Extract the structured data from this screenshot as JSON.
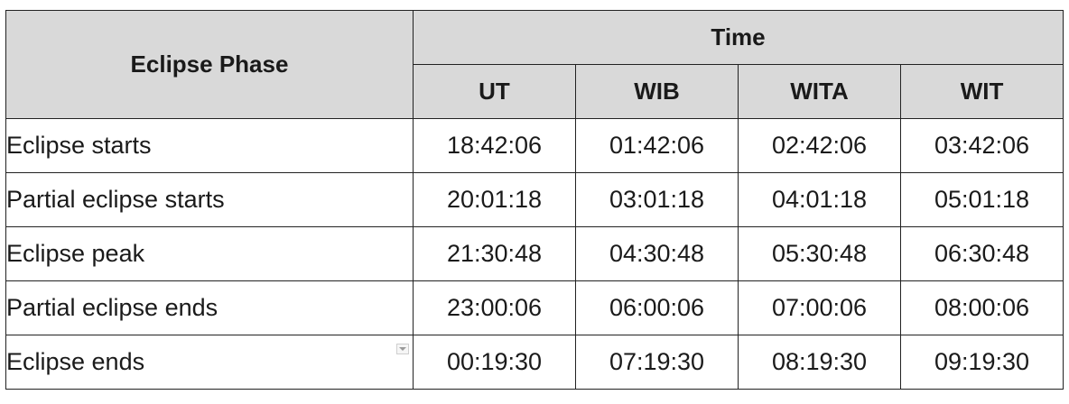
{
  "table": {
    "header": {
      "phase_label": "Eclipse Phase",
      "time_label": "Time",
      "zones": [
        "UT",
        "WIB",
        "WITA",
        "WIT"
      ]
    },
    "rows": [
      {
        "phase": "Eclipse starts",
        "times": [
          "18:42:06",
          "01:42:06",
          "02:42:06",
          "03:42:06"
        ]
      },
      {
        "phase": "Partial eclipse starts",
        "times": [
          "20:01:18",
          "03:01:18",
          "04:01:18",
          "05:01:18"
        ]
      },
      {
        "phase": "Eclipse peak",
        "times": [
          "21:30:48",
          "04:30:48",
          "05:30:48",
          "06:30:48"
        ]
      },
      {
        "phase": "Partial eclipse ends",
        "times": [
          "23:00:06",
          "06:00:06",
          "07:00:06",
          "08:00:06"
        ]
      },
      {
        "phase": "Eclipse ends",
        "times": [
          "00:19:30",
          "07:19:30",
          "08:19:30",
          "09:19:30"
        ]
      }
    ],
    "colors": {
      "header_bg": "#d9d9d9",
      "border": "#222222"
    }
  }
}
